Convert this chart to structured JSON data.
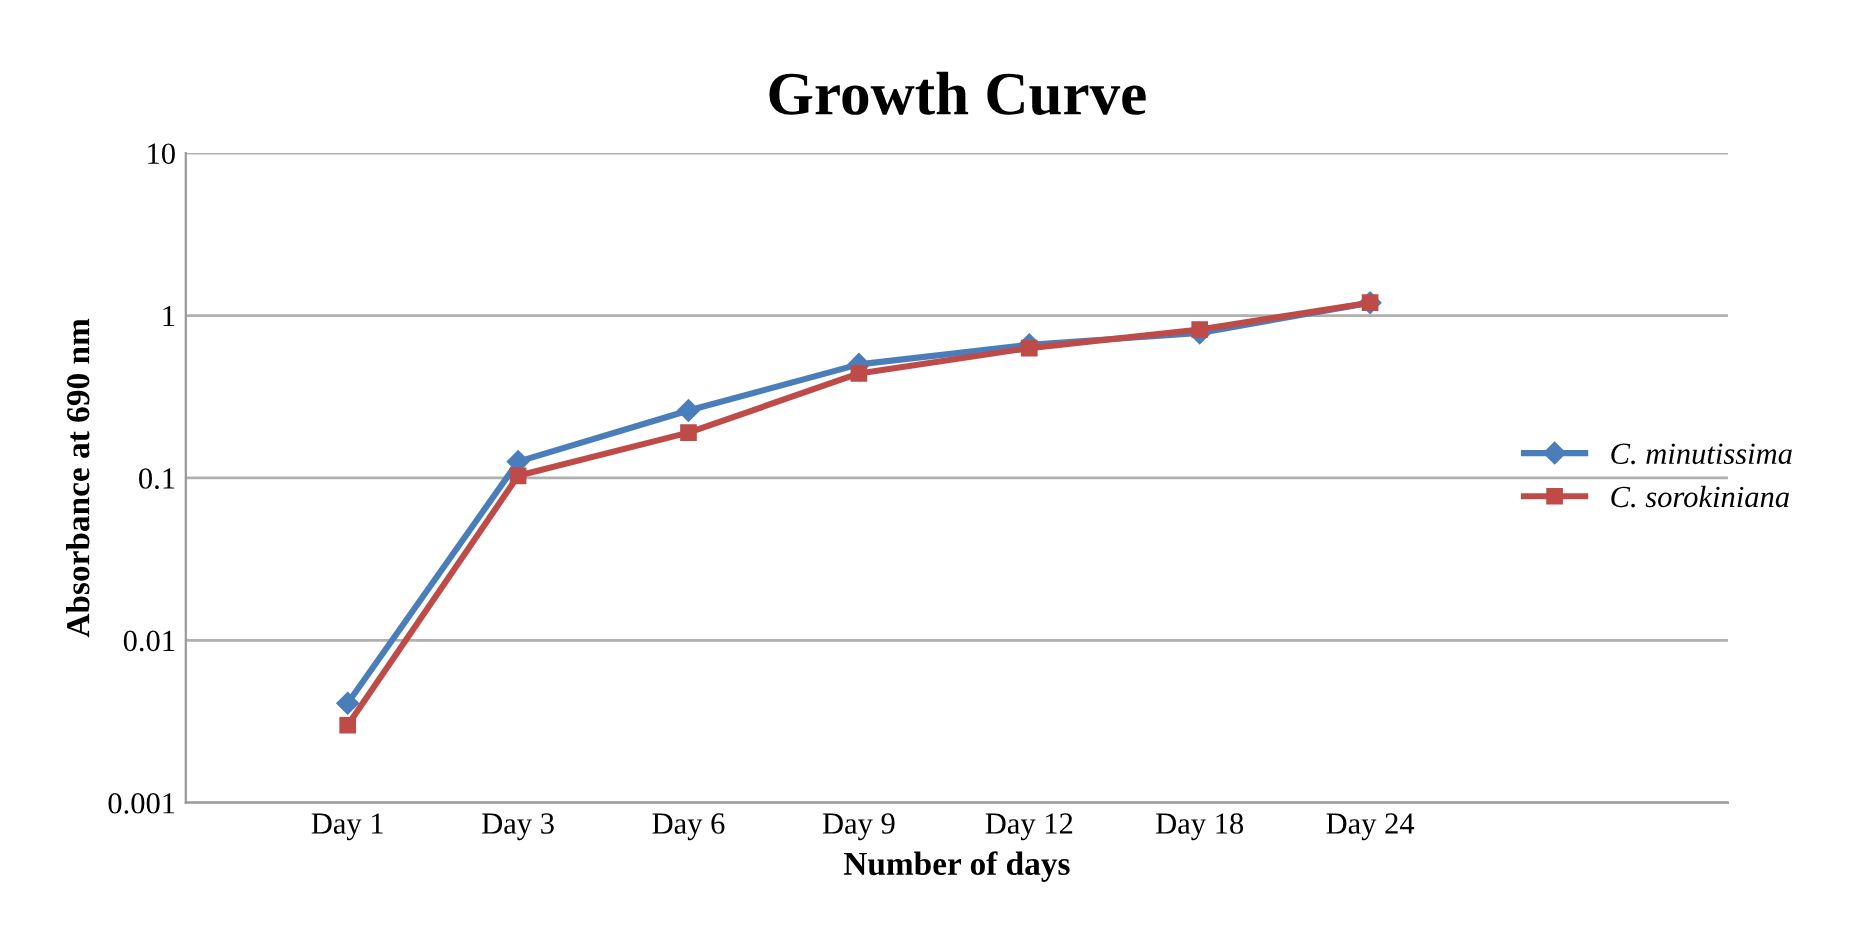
{
  "chart_data": {
    "type": "line",
    "title": "Growth Curve",
    "xlabel": "Number of days",
    "ylabel": "Absorbance at 690 nm",
    "categories": [
      "Day 1",
      "Day 3",
      "Day 6",
      "Day 9",
      "Day 12",
      "Day 18",
      "Day 24"
    ],
    "series": [
      {
        "name": "C. minutissima",
        "color": "#4a7ebb",
        "marker": "diamond",
        "values": [
          0.0041,
          0.126,
          0.26,
          0.5,
          0.66,
          0.78,
          1.2
        ]
      },
      {
        "name": "C. sorokiniana",
        "color": "#be4b48",
        "marker": "square",
        "values": [
          0.003,
          0.103,
          0.19,
          0.44,
          0.63,
          0.82,
          1.2
        ]
      }
    ],
    "log": "y",
    "ylim": [
      0.001,
      10
    ],
    "yticks": [
      0.001,
      0.01,
      0.1,
      1,
      10
    ],
    "grid": "y",
    "legend": "right",
    "line_style": "solid"
  }
}
